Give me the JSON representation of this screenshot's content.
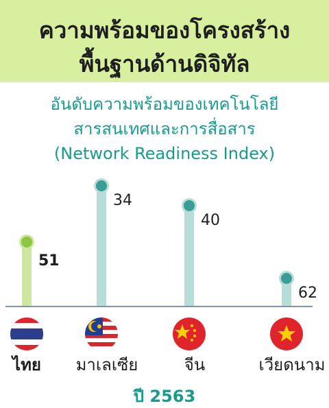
{
  "chart_data": {
    "type": "lollipop",
    "title": [
      "ความพร้อมของโครงสร้าง",
      "พื้นฐานด้านดิจิทัล"
    ],
    "subtitle": [
      "อันดับความพร้อมของเทคโนโลยี",
      "สารสนเทศและการสื่อสาร",
      "(Network Readiness Index)"
    ],
    "categories": [
      "ไทย",
      "มาเลเซีย",
      "จีน",
      "เวียดนาม"
    ],
    "values": [
      51,
      34,
      40,
      62
    ],
    "colors": [
      "#8dc63f",
      "#3a9d96",
      "#3a9d96",
      "#3a9d96"
    ],
    "highlight": 0,
    "footer": "ปี 2563"
  }
}
